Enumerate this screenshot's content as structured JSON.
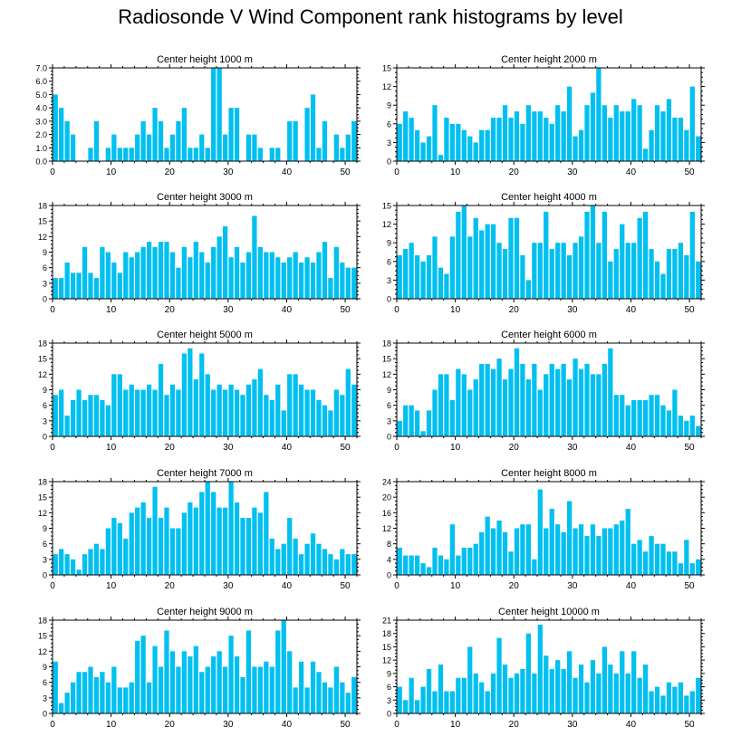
{
  "title": "Radiosonde V Wind Component rank histograms by level",
  "colors": {
    "bar": "#00C0F0",
    "axis": "#000000",
    "background": "#FFFFFF"
  },
  "chart_data": [
    {
      "type": "bar",
      "title": "Center height 1000 m",
      "values": [
        5,
        4,
        3,
        2,
        0,
        0,
        1,
        3,
        0,
        1,
        2,
        1,
        1,
        1,
        2,
        3,
        2,
        4,
        3,
        1,
        2,
        3,
        4,
        1,
        1,
        2,
        1,
        7,
        7,
        2,
        4,
        4,
        0,
        2,
        2,
        1,
        0,
        1,
        1,
        0,
        3,
        3,
        0,
        4,
        5,
        1,
        3,
        0,
        2,
        1,
        2,
        3
      ],
      "ylim": [
        0,
        7
      ],
      "yticks": [
        0,
        1,
        2,
        3,
        4,
        5,
        6,
        7
      ],
      "ytick_labels": [
        "0.0",
        "1.0",
        "2.0",
        "3.0",
        "4.0",
        "5.0",
        "6.0",
        "7.0"
      ],
      "xticks": [
        0,
        10,
        20,
        30,
        40,
        50
      ],
      "xlim": [
        0,
        52
      ]
    },
    {
      "type": "bar",
      "title": "Center height 2000 m",
      "values": [
        6,
        8,
        7,
        5,
        3,
        4,
        9,
        1,
        7,
        6,
        6,
        5,
        4,
        3,
        5,
        5,
        7,
        7,
        9,
        7,
        8,
        6,
        9,
        8,
        8,
        7,
        6,
        9,
        8,
        12,
        4,
        5,
        9,
        11,
        15,
        9,
        7,
        9,
        8,
        8,
        10,
        9,
        2,
        5,
        9,
        8,
        10,
        7,
        7,
        5,
        12,
        4
      ],
      "ylim": [
        0,
        15
      ],
      "yticks": [
        0,
        3,
        6,
        9,
        12,
        15
      ],
      "ytick_labels": [
        "0",
        "3",
        "6",
        "9",
        "12",
        "15"
      ],
      "xticks": [
        0,
        10,
        20,
        30,
        40,
        50
      ],
      "xlim": [
        0,
        52
      ]
    },
    {
      "type": "bar",
      "title": "Center height 3000 m",
      "values": [
        4,
        4,
        7,
        5,
        5,
        10,
        5,
        4,
        10,
        9,
        7,
        5,
        9,
        8,
        9,
        10,
        11,
        10,
        11,
        11,
        9,
        6,
        10,
        8,
        11,
        9,
        7,
        10,
        12,
        14,
        8,
        10,
        7,
        9,
        16,
        10,
        9,
        9,
        8,
        7,
        8,
        9,
        7,
        8,
        7,
        9,
        11,
        4,
        10,
        7,
        6,
        6
      ],
      "ylim": [
        0,
        18
      ],
      "yticks": [
        0,
        3,
        6,
        9,
        12,
        15,
        18
      ],
      "ytick_labels": [
        "0",
        "3",
        "6",
        "9",
        "12",
        "15",
        "18"
      ],
      "xticks": [
        0,
        10,
        20,
        30,
        40,
        50
      ],
      "xlim": [
        0,
        52
      ]
    },
    {
      "type": "bar",
      "title": "Center height 4000 m",
      "values": [
        7,
        8,
        9,
        7,
        6,
        7,
        10,
        5,
        4,
        10,
        14,
        15,
        10,
        13,
        11,
        12,
        12,
        9,
        8,
        13,
        13,
        7,
        3,
        9,
        9,
        14,
        8,
        9,
        9,
        7,
        9,
        10,
        14,
        15,
        9,
        14,
        6,
        8,
        12,
        9,
        9,
        13,
        14,
        8,
        6,
        4,
        8,
        8,
        9,
        7,
        14,
        6
      ],
      "ylim": [
        0,
        15
      ],
      "yticks": [
        0,
        3,
        6,
        9,
        12,
        15
      ],
      "ytick_labels": [
        "0",
        "3",
        "6",
        "9",
        "12",
        "15"
      ],
      "xticks": [
        0,
        10,
        20,
        30,
        40,
        50
      ],
      "xlim": [
        0,
        52
      ]
    },
    {
      "type": "bar",
      "title": "Center height 5000 m",
      "values": [
        8,
        9,
        4,
        7,
        9,
        7,
        8,
        8,
        7,
        6,
        12,
        12,
        9,
        10,
        9,
        9,
        10,
        9,
        14,
        8,
        10,
        9,
        16,
        17,
        11,
        16,
        12,
        9,
        10,
        9,
        10,
        9,
        8,
        10,
        11,
        13,
        8,
        7,
        10,
        5,
        12,
        12,
        10,
        9,
        9,
        7,
        6,
        5,
        9,
        8,
        13,
        10
      ],
      "ylim": [
        0,
        18
      ],
      "yticks": [
        0,
        3,
        6,
        9,
        12,
        15,
        18
      ],
      "ytick_labels": [
        "0",
        "3",
        "6",
        "9",
        "12",
        "15",
        "18"
      ],
      "xticks": [
        0,
        10,
        20,
        30,
        40,
        50
      ],
      "xlim": [
        0,
        52
      ]
    },
    {
      "type": "bar",
      "title": "Center height 6000 m",
      "values": [
        3,
        6,
        6,
        5,
        1,
        5,
        9,
        12,
        12,
        7,
        13,
        12,
        9,
        11,
        14,
        14,
        13,
        15,
        11,
        13,
        17,
        14,
        11,
        14,
        9,
        12,
        14,
        13,
        14,
        11,
        15,
        13,
        14,
        12,
        12,
        14,
        17,
        8,
        8,
        6,
        7,
        7,
        7,
        8,
        8,
        6,
        5,
        9,
        4,
        3,
        4,
        2
      ],
      "ylim": [
        0,
        18
      ],
      "yticks": [
        0,
        3,
        6,
        9,
        12,
        15,
        18
      ],
      "ytick_labels": [
        "0",
        "3",
        "6",
        "9",
        "12",
        "15",
        "18"
      ],
      "xticks": [
        0,
        10,
        20,
        30,
        40,
        50
      ],
      "xlim": [
        0,
        52
      ]
    },
    {
      "type": "bar",
      "title": "Center height 7000 m",
      "values": [
        4,
        5,
        4,
        3,
        1,
        4,
        5,
        6,
        5,
        9,
        11,
        10,
        7,
        12,
        13,
        14,
        11,
        17,
        11,
        13,
        9,
        9,
        12,
        14,
        13,
        16,
        18,
        16,
        13,
        13,
        18,
        14,
        11,
        11,
        13,
        12,
        16,
        7,
        5,
        6,
        11,
        7,
        4,
        6,
        8,
        6,
        5,
        4,
        3,
        5,
        4,
        4
      ],
      "ylim": [
        0,
        18
      ],
      "yticks": [
        0,
        3,
        6,
        9,
        12,
        15,
        18
      ],
      "ytick_labels": [
        "0",
        "3",
        "6",
        "9",
        "12",
        "15",
        "18"
      ],
      "xticks": [
        0,
        10,
        20,
        30,
        40,
        50
      ],
      "xlim": [
        0,
        52
      ]
    },
    {
      "type": "bar",
      "title": "Center height 8000 m",
      "values": [
        7,
        5,
        5,
        5,
        3,
        2,
        7,
        5,
        4,
        13,
        5,
        7,
        7,
        8,
        11,
        15,
        12,
        14,
        11,
        6,
        12,
        13,
        13,
        4,
        22,
        12,
        17,
        13,
        11,
        19,
        12,
        13,
        10,
        13,
        10,
        12,
        12,
        13,
        14,
        17,
        8,
        9,
        6,
        10,
        8,
        8,
        6,
        6,
        3,
        9,
        3,
        4
      ],
      "ylim": [
        0,
        24
      ],
      "yticks": [
        0,
        4,
        8,
        12,
        16,
        20,
        24
      ],
      "ytick_labels": [
        "0",
        "4",
        "8",
        "12",
        "16",
        "20",
        "24"
      ],
      "xticks": [
        0,
        10,
        20,
        30,
        40,
        50
      ],
      "xlim": [
        0,
        52
      ]
    },
    {
      "type": "bar",
      "title": "Center height 9000 m",
      "values": [
        10,
        2,
        4,
        6,
        8,
        8,
        9,
        7,
        8,
        6,
        9,
        5,
        5,
        6,
        14,
        15,
        6,
        13,
        9,
        16,
        12,
        9,
        12,
        11,
        13,
        8,
        9,
        11,
        12,
        9,
        15,
        11,
        7,
        16,
        9,
        9,
        10,
        9,
        16,
        18,
        12,
        5,
        10,
        5,
        10,
        8,
        6,
        5,
        9,
        6,
        4,
        7
      ],
      "ylim": [
        0,
        18
      ],
      "yticks": [
        0,
        3,
        6,
        9,
        12,
        15,
        18
      ],
      "ytick_labels": [
        "0",
        "3",
        "6",
        "9",
        "12",
        "15",
        "18"
      ],
      "xticks": [
        0,
        10,
        20,
        30,
        40,
        50
      ],
      "xlim": [
        0,
        52
      ]
    },
    {
      "type": "bar",
      "title": "Center height 10000 m",
      "values": [
        6,
        3,
        8,
        3,
        6,
        10,
        5,
        11,
        5,
        5,
        8,
        8,
        15,
        9,
        7,
        5,
        9,
        17,
        11,
        8,
        9,
        10,
        18,
        9,
        20,
        13,
        10,
        12,
        10,
        14,
        8,
        11,
        7,
        12,
        9,
        15,
        11,
        9,
        14,
        9,
        14,
        8,
        11,
        5,
        6,
        4,
        7,
        6,
        7,
        4,
        5,
        8
      ],
      "ylim": [
        0,
        21
      ],
      "yticks": [
        0,
        3,
        6,
        9,
        12,
        15,
        18,
        21
      ],
      "ytick_labels": [
        "0",
        "3",
        "6",
        "9",
        "12",
        "15",
        "18",
        "21"
      ],
      "xticks": [
        0,
        10,
        20,
        30,
        40,
        50
      ],
      "xlim": [
        0,
        52
      ]
    }
  ]
}
